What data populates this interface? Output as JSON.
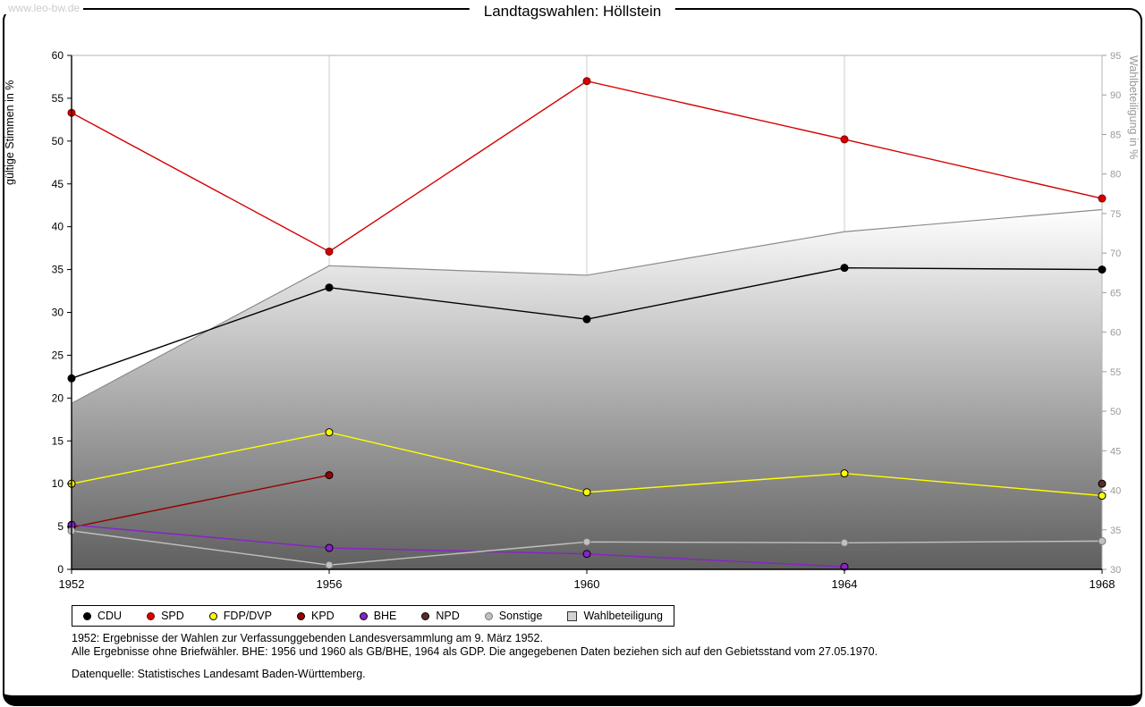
{
  "watermark": "www.leo-bw.de",
  "chart_data": {
    "type": "line",
    "title": "Landtagswahlen: Höllstein",
    "x": [
      1952,
      1956,
      1960,
      1964,
      1968
    ],
    "left_axis": {
      "label": "gültige Stimmen in %",
      "range": [
        0,
        60
      ],
      "tick_step": 5
    },
    "right_axis": {
      "label": "Wahlbeteiligung in %",
      "range": [
        30,
        95
      ],
      "tick_step": 5
    },
    "grid": "vertical-only",
    "legend_position": "bottom-left",
    "series": [
      {
        "name": "CDU",
        "type": "line",
        "axis": "left",
        "color": "#000000",
        "marker_outline": "#000000",
        "values": [
          22.3,
          32.9,
          29.2,
          35.2,
          35.0
        ]
      },
      {
        "name": "SPD",
        "type": "line",
        "axis": "left",
        "color": "#d40000",
        "marker_outline": "#7a0000",
        "values": [
          53.3,
          37.1,
          57.0,
          50.2,
          43.3
        ]
      },
      {
        "name": "FDP/DVP",
        "type": "line",
        "axis": "left",
        "color": "#ffff00",
        "marker_outline": "#000000",
        "values": [
          10.0,
          16.0,
          9.0,
          11.2,
          8.6
        ]
      },
      {
        "name": "KPD",
        "type": "line",
        "axis": "left",
        "color": "#990000",
        "marker_outline": "#000000",
        "values": [
          4.9,
          11.0,
          null,
          null,
          null
        ]
      },
      {
        "name": "BHE",
        "type": "line",
        "axis": "left",
        "color": "#8822cc",
        "marker_outline": "#000000",
        "values": [
          5.2,
          2.5,
          1.8,
          0.3,
          null
        ]
      },
      {
        "name": "NPD",
        "type": "line",
        "axis": "left",
        "color": "#5a2d24",
        "marker_outline": "#000000",
        "values": [
          null,
          null,
          null,
          null,
          10.0
        ]
      },
      {
        "name": "Sonstige",
        "type": "line",
        "axis": "left",
        "color": "#c0c0c0",
        "marker_outline": "#777777",
        "values": [
          4.5,
          0.5,
          3.2,
          3.1,
          3.3
        ]
      },
      {
        "name": "Wahlbeteiligung",
        "type": "area",
        "axis": "right",
        "color_top": "#ffffff",
        "color_bottom": "#5f5f5f",
        "outline": "#8c8c8c",
        "legend_fill": "#d2d2d2",
        "values": [
          51.0,
          68.4,
          67.2,
          72.7,
          75.5
        ]
      }
    ]
  },
  "footnotes": [
    "1952: Ergebnisse der Wahlen zur Verfassunggebenden Landesversammlung am 9. März 1952.",
    "Alle Ergebnisse ohne Briefwähler. BHE: 1956 und 1960 als GB/BHE, 1964 als GDP. Die angegebenen Daten beziehen sich auf den Gebietsstand vom 27.05.1970.",
    "Datenquelle: Statistisches Landesamt Baden-Württemberg."
  ]
}
